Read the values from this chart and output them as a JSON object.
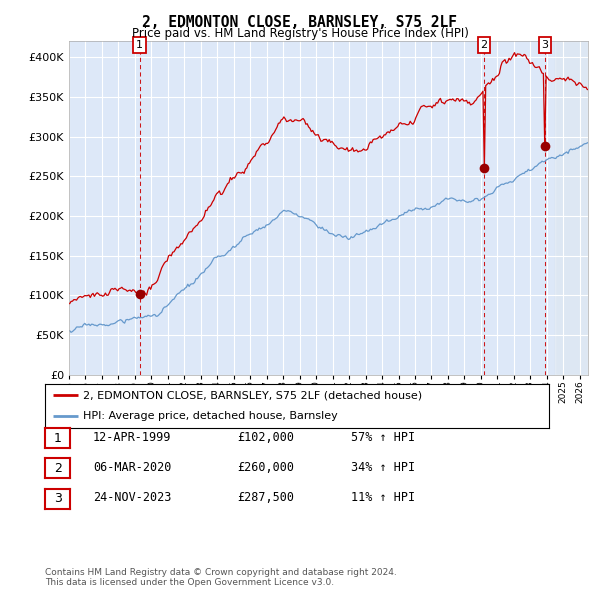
{
  "title": "2, EDMONTON CLOSE, BARNSLEY, S75 2LF",
  "subtitle": "Price paid vs. HM Land Registry's House Price Index (HPI)",
  "xlim": [
    1995.0,
    2026.5
  ],
  "ylim": [
    0,
    420000
  ],
  "yticks": [
    0,
    50000,
    100000,
    150000,
    200000,
    250000,
    300000,
    350000,
    400000
  ],
  "sale_dates": [
    1999.28,
    2020.18,
    2023.9
  ],
  "sale_prices": [
    102000,
    260000,
    287500
  ],
  "sale_labels": [
    "1",
    "2",
    "3"
  ],
  "vline_color": "#cc0000",
  "property_line_color": "#cc0000",
  "hpi_line_color": "#6699cc",
  "legend_label_property": "2, EDMONTON CLOSE, BARNSLEY, S75 2LF (detached house)",
  "legend_label_hpi": "HPI: Average price, detached house, Barnsley",
  "table_rows": [
    [
      "1",
      "12-APR-1999",
      "£102,000",
      "57% ↑ HPI"
    ],
    [
      "2",
      "06-MAR-2020",
      "£260,000",
      "34% ↑ HPI"
    ],
    [
      "3",
      "24-NOV-2023",
      "£287,500",
      "11% ↑ HPI"
    ]
  ],
  "footer": "Contains HM Land Registry data © Crown copyright and database right 2024.\nThis data is licensed under the Open Government Licence v3.0.",
  "background_color": "#ffffff",
  "plot_bg_color": "#dde8f8"
}
